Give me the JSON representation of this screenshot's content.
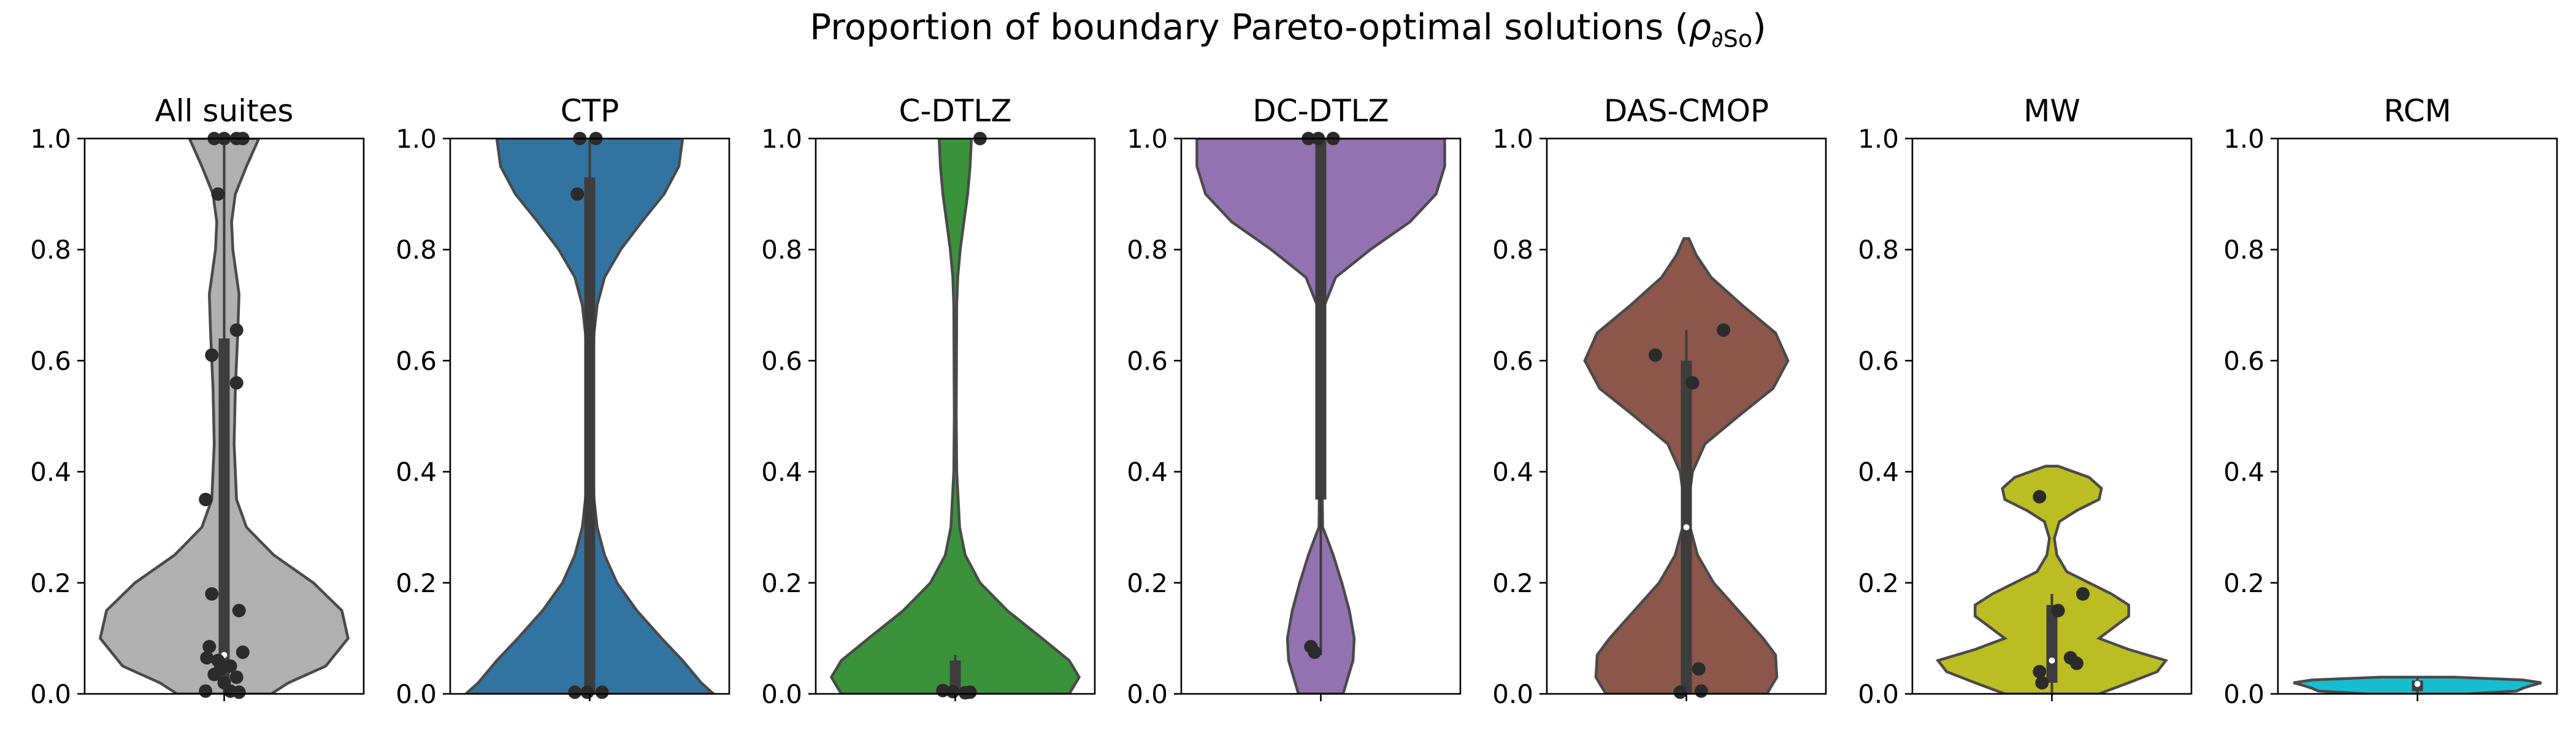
{
  "figure": {
    "title_text": "Proportion of boundary Pareto-optimal solutions (",
    "title_symbol": "ρ",
    "title_subscript": "∂So",
    "title_close": ")"
  },
  "chart_data": [
    {
      "type": "violin",
      "title": "All suites",
      "ylim": [
        0,
        1
      ],
      "yticks": [
        "0.0",
        "0.2",
        "0.4",
        "0.6",
        "0.8",
        "1.0"
      ],
      "color": "#b0b0b0",
      "density": [
        [
          0.0,
          0.38
        ],
        [
          0.02,
          0.52
        ],
        [
          0.05,
          0.82
        ],
        [
          0.1,
          1.0
        ],
        [
          0.15,
          0.95
        ],
        [
          0.2,
          0.72
        ],
        [
          0.25,
          0.4
        ],
        [
          0.3,
          0.18
        ],
        [
          0.35,
          0.1
        ],
        [
          0.45,
          0.08
        ],
        [
          0.55,
          0.09
        ],
        [
          0.65,
          0.11
        ],
        [
          0.72,
          0.12
        ],
        [
          0.8,
          0.07
        ],
        [
          0.85,
          0.06
        ],
        [
          0.9,
          0.09
        ],
        [
          0.95,
          0.18
        ],
        [
          1.0,
          0.28
        ]
      ],
      "box": {
        "q1": 0.02,
        "median": 0.07,
        "q3": 0.64,
        "whisker_low": 0.0,
        "whisker_high": 1.0
      },
      "points": [
        [
          -0.15,
          0.35
        ],
        [
          -0.1,
          0.61
        ],
        [
          -0.05,
          0.9
        ],
        [
          0.1,
          0.56
        ],
        [
          0.1,
          0.655
        ],
        [
          -0.1,
          0.18
        ],
        [
          0.12,
          0.15
        ],
        [
          -0.12,
          0.085
        ],
        [
          -0.14,
          0.065
        ],
        [
          -0.05,
          0.06
        ],
        [
          0.05,
          0.05
        ],
        [
          -0.03,
          0.045
        ],
        [
          0.15,
          0.075
        ],
        [
          0.1,
          0.03
        ],
        [
          -0.08,
          0.035
        ],
        [
          0.0,
          0.02
        ],
        [
          -0.15,
          0.005
        ],
        [
          0.12,
          0.003
        ],
        [
          0.05,
          0.005
        ],
        [
          -0.08,
          1.0
        ],
        [
          0.0,
          1.0
        ],
        [
          0.1,
          1.0
        ],
        [
          0.15,
          1.0
        ]
      ]
    },
    {
      "type": "violin",
      "title": "CTP",
      "ylim": [
        0,
        1
      ],
      "yticks": [
        "0.0",
        "0.2",
        "0.4",
        "0.6",
        "0.8",
        "1.0"
      ],
      "color": "#3274a1",
      "density": [
        [
          0.0,
          1.0
        ],
        [
          0.02,
          0.9
        ],
        [
          0.06,
          0.75
        ],
        [
          0.1,
          0.58
        ],
        [
          0.15,
          0.38
        ],
        [
          0.2,
          0.22
        ],
        [
          0.25,
          0.12
        ],
        [
          0.3,
          0.06
        ],
        [
          0.35,
          0.035
        ],
        [
          0.45,
          0.018
        ],
        [
          0.55,
          0.018
        ],
        [
          0.65,
          0.035
        ],
        [
          0.7,
          0.06
        ],
        [
          0.75,
          0.12
        ],
        [
          0.8,
          0.25
        ],
        [
          0.85,
          0.42
        ],
        [
          0.9,
          0.6
        ],
        [
          0.95,
          0.72
        ],
        [
          1.0,
          0.75
        ]
      ],
      "box": {
        "q1": 0.0,
        "median": 0.0,
        "q3": 0.93,
        "whisker_low": 0.0,
        "whisker_high": 1.0
      },
      "points": [
        [
          -0.1,
          0.9
        ],
        [
          -0.08,
          1.0
        ],
        [
          0.05,
          1.0
        ],
        [
          -0.12,
          0.003
        ],
        [
          -0.02,
          0.003
        ],
        [
          0.1,
          0.003
        ]
      ]
    },
    {
      "type": "violin",
      "title": "C-DTLZ",
      "ylim": [
        0,
        1
      ],
      "yticks": [
        "0.0",
        "0.2",
        "0.4",
        "0.6",
        "0.8",
        "1.0"
      ],
      "color": "#3a923a",
      "density": [
        [
          0.0,
          0.92
        ],
        [
          0.03,
          1.0
        ],
        [
          0.06,
          0.92
        ],
        [
          0.1,
          0.7
        ],
        [
          0.15,
          0.42
        ],
        [
          0.2,
          0.2
        ],
        [
          0.25,
          0.08
        ],
        [
          0.3,
          0.035
        ],
        [
          0.4,
          0.012
        ],
        [
          0.5,
          0.008
        ],
        [
          0.6,
          0.01
        ],
        [
          0.7,
          0.012
        ],
        [
          0.75,
          0.02
        ],
        [
          0.8,
          0.04
        ],
        [
          0.85,
          0.07
        ],
        [
          0.9,
          0.1
        ],
        [
          0.95,
          0.12
        ],
        [
          1.0,
          0.13
        ]
      ],
      "box": {
        "q1": 0.0,
        "median": 0.005,
        "q3": 0.06,
        "whisker_low": 0.0,
        "whisker_high": 0.07
      },
      "points": [
        [
          0.2,
          1.0
        ],
        [
          -0.1,
          0.006
        ],
        [
          -0.02,
          0.004
        ],
        [
          0.08,
          0.002
        ],
        [
          0.12,
          0.003
        ]
      ]
    },
    {
      "type": "violin",
      "title": "DC-DTLZ",
      "ylim": [
        0,
        1
      ],
      "yticks": [
        "0.0",
        "0.2",
        "0.4",
        "0.6",
        "0.8",
        "1.0"
      ],
      "color": "#9372b2",
      "density": [
        [
          0.0,
          0.18
        ],
        [
          0.03,
          0.22
        ],
        [
          0.06,
          0.26
        ],
        [
          0.1,
          0.27
        ],
        [
          0.15,
          0.23
        ],
        [
          0.2,
          0.17
        ],
        [
          0.25,
          0.1
        ],
        [
          0.28,
          0.05
        ],
        [
          0.3,
          0.015
        ],
        [
          0.4,
          0.01
        ],
        [
          0.5,
          0.01
        ],
        [
          0.6,
          0.01
        ],
        [
          0.65,
          0.012
        ],
        [
          0.7,
          0.03
        ],
        [
          0.75,
          0.12
        ],
        [
          0.8,
          0.4
        ],
        [
          0.85,
          0.72
        ],
        [
          0.9,
          0.93
        ],
        [
          0.95,
          1.0
        ],
        [
          1.0,
          1.0
        ]
      ],
      "box": {
        "q1": 0.35,
        "median": 1.0,
        "q3": 1.0,
        "whisker_low": 0.07,
        "whisker_high": 1.0
      },
      "points": [
        [
          -0.08,
          0.085
        ],
        [
          -0.05,
          0.075
        ],
        [
          -0.1,
          1.0
        ],
        [
          -0.02,
          1.0
        ],
        [
          0.1,
          1.0
        ]
      ]
    },
    {
      "type": "violin",
      "title": "DAS-CMOP",
      "ylim": [
        0,
        1
      ],
      "yticks": [
        "0.0",
        "0.2",
        "0.4",
        "0.6",
        "0.8",
        "1.0"
      ],
      "color": "#8c564b",
      "density": [
        [
          0.0,
          0.65
        ],
        [
          0.03,
          0.73
        ],
        [
          0.07,
          0.72
        ],
        [
          0.1,
          0.62
        ],
        [
          0.15,
          0.42
        ],
        [
          0.2,
          0.22
        ],
        [
          0.25,
          0.09
        ],
        [
          0.3,
          0.03
        ],
        [
          0.35,
          0.02
        ],
        [
          0.4,
          0.05
        ],
        [
          0.45,
          0.15
        ],
        [
          0.5,
          0.42
        ],
        [
          0.55,
          0.7
        ],
        [
          0.6,
          0.82
        ],
        [
          0.65,
          0.72
        ],
        [
          0.7,
          0.45
        ],
        [
          0.75,
          0.2
        ],
        [
          0.79,
          0.08
        ],
        [
          0.82,
          0.02
        ]
      ],
      "box": {
        "q1": 0.0,
        "median": 0.3,
        "q3": 0.6,
        "whisker_low": 0.0,
        "whisker_high": 0.655
      },
      "points": [
        [
          -0.25,
          0.61
        ],
        [
          0.05,
          0.56
        ],
        [
          0.3,
          0.655
        ],
        [
          0.1,
          0.045
        ],
        [
          0.12,
          0.005
        ],
        [
          -0.05,
          0.003
        ]
      ]
    },
    {
      "type": "violin",
      "title": "MW",
      "ylim": [
        0,
        1
      ],
      "yticks": [
        "0.0",
        "0.2",
        "0.4",
        "0.6",
        "0.8",
        "1.0"
      ],
      "color": "#bcbd22",
      "density": [
        [
          0.0,
          0.38
        ],
        [
          0.02,
          0.62
        ],
        [
          0.04,
          0.85
        ],
        [
          0.06,
          0.92
        ],
        [
          0.08,
          0.62
        ],
        [
          0.1,
          0.38
        ],
        [
          0.12,
          0.5
        ],
        [
          0.14,
          0.62
        ],
        [
          0.16,
          0.62
        ],
        [
          0.18,
          0.48
        ],
        [
          0.2,
          0.3
        ],
        [
          0.22,
          0.12
        ],
        [
          0.25,
          0.04
        ],
        [
          0.28,
          0.02
        ],
        [
          0.31,
          0.06
        ],
        [
          0.33,
          0.2
        ],
        [
          0.35,
          0.38
        ],
        [
          0.37,
          0.4
        ],
        [
          0.39,
          0.3
        ],
        [
          0.41,
          0.05
        ]
      ],
      "box": {
        "q1": 0.02,
        "median": 0.06,
        "q3": 0.16,
        "whisker_low": 0.0,
        "whisker_high": 0.18
      },
      "points": [
        [
          -0.1,
          0.355
        ],
        [
          0.25,
          0.18
        ],
        [
          -0.1,
          0.04
        ],
        [
          -0.08,
          0.02
        ],
        [
          0.05,
          0.15
        ],
        [
          0.15,
          0.065
        ],
        [
          0.2,
          0.055
        ]
      ]
    },
    {
      "type": "violin",
      "title": "RCM",
      "ylim": [
        0,
        1
      ],
      "yticks": [
        "0.0",
        "0.2",
        "0.4",
        "0.6",
        "0.8",
        "1.0"
      ],
      "color": "#17becf",
      "density": [
        [
          0.0,
          0.4
        ],
        [
          0.005,
          0.8
        ],
        [
          0.01,
          0.85
        ],
        [
          0.015,
          0.92
        ],
        [
          0.02,
          1.0
        ],
        [
          0.025,
          0.85
        ],
        [
          0.03,
          0.3
        ]
      ],
      "box": {
        "q1": 0.005,
        "median": 0.018,
        "q3": 0.024,
        "whisker_low": 0.0,
        "whisker_high": 0.03
      },
      "points": []
    }
  ]
}
